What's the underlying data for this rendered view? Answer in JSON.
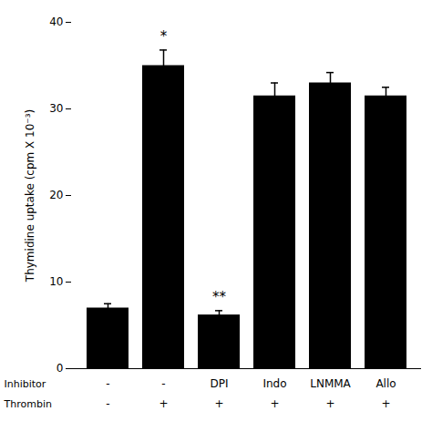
{
  "chart_data": {
    "type": "bar",
    "categories": [
      [
        "-",
        "-"
      ],
      [
        "-",
        "+"
      ],
      [
        "DPI",
        "+"
      ],
      [
        "Indo",
        "+"
      ],
      [
        "LNMMA",
        "+"
      ],
      [
        "Allo",
        "+"
      ]
    ],
    "category_titles": [
      "Inhibitor",
      "Thrombin"
    ],
    "values": [
      7.0,
      35.0,
      6.2,
      31.5,
      33.0,
      31.5
    ],
    "errors": [
      0.5,
      1.8,
      0.5,
      1.5,
      1.2,
      1.0
    ],
    "color": "#000000",
    "ylabel": "Thymidine uptake (cpm X 10⁻³)",
    "ylim": [
      0,
      40
    ],
    "yticks": [
      0,
      10,
      20,
      30,
      40
    ],
    "annotations": [
      {
        "index": 1,
        "text": "*"
      },
      {
        "index": 2,
        "text": "**"
      }
    ]
  }
}
